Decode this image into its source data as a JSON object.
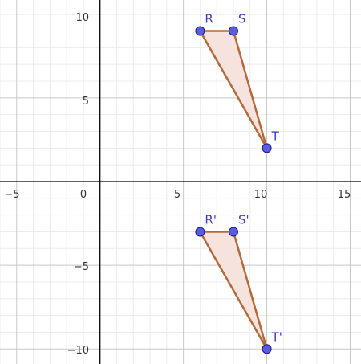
{
  "colors": {
    "minor_grid": "#ececec",
    "major_grid": "#c8c8c8",
    "axis": "#000000",
    "edge": "#b5693a",
    "fill": "#f7e3dd",
    "point_fill": "#5a5ae6",
    "point_stroke": "#1a1a80",
    "label": "#3b3bd0"
  },
  "chart_data": {
    "type": "scatter",
    "x_range": [
      -6,
      15.65
    ],
    "y_range": [
      -10.9,
      10.85
    ],
    "major_step": 5,
    "minor_step": 1,
    "grid": true,
    "x_tick_labels": [
      "−5",
      "0",
      "5",
      "10",
      "15"
    ],
    "y_tick_labels": [
      "10",
      "5",
      "−5",
      "−10"
    ],
    "polygons": [
      {
        "points": [
          {
            "label": "R",
            "x": 6,
            "y": 9
          },
          {
            "label": "S",
            "x": 8,
            "y": 9
          },
          {
            "label": "T",
            "x": 10,
            "y": 2
          }
        ]
      },
      {
        "points": [
          {
            "label": "R'",
            "x": 6,
            "y": -3
          },
          {
            "label": "S'",
            "x": 8,
            "y": -3
          },
          {
            "label": "T'",
            "x": 10,
            "y": -10
          }
        ]
      }
    ]
  }
}
